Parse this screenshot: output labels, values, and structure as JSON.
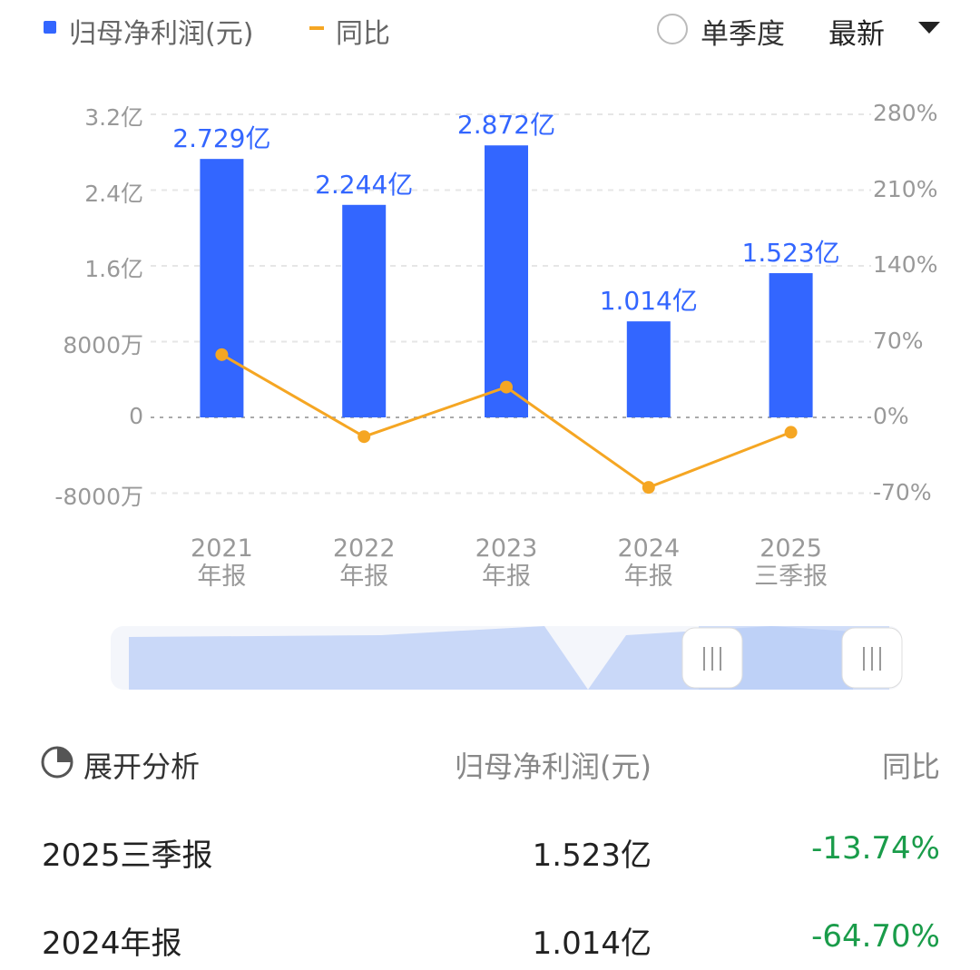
{
  "chart_data": {
    "type": "bar",
    "categories": [
      "2021\n年报",
      "2022\n年报",
      "2023\n年报",
      "2024\n年报",
      "2025\n三季报"
    ],
    "series": [
      {
        "name": "归母净利润(元)",
        "type": "bar",
        "color": "#3366ff",
        "axis": "y",
        "values": [
          272900000,
          224400000,
          287200000,
          101400000,
          152300000
        ],
        "value_labels": [
          "2.729亿",
          "2.244亿",
          "2.872亿",
          "1.014亿",
          "1.523亿"
        ]
      },
      {
        "name": "同比",
        "type": "line",
        "color": "#f5a623",
        "axis": "y2",
        "values": [
          58,
          -17.77,
          27.99,
          -64.7,
          -13.74
        ]
      }
    ],
    "ylim": [
      -80000000,
      320000000
    ],
    "yticks": [
      {
        "value": -80000000,
        "label": "-8000万"
      },
      0,
      {
        "value": 80000000,
        "label": "8000万"
      },
      {
        "value": 160000000,
        "label": "1.6亿"
      },
      {
        "value": 240000000,
        "label": "2.4亿"
      },
      {
        "value": 320000000,
        "label": "3.2亿"
      }
    ],
    "y2lim": [
      -70,
      280
    ],
    "y2ticks": [
      {
        "value": -70,
        "label": "-70%"
      },
      {
        "value": 0,
        "label": "0%"
      },
      {
        "value": 70,
        "label": "70%"
      },
      {
        "value": 140,
        "label": "140%"
      },
      {
        "value": 210,
        "label": "210%"
      },
      {
        "value": 280,
        "label": "280%"
      }
    ],
    "grid": true
  },
  "controls": {
    "quarterly": "单季度",
    "sort": "最新"
  },
  "table": {
    "header": [
      "展开分析",
      "归母净利润(元)",
      "同比"
    ],
    "rows": [
      [
        "2025三季报",
        "1.523亿",
        "-13.74%"
      ],
      [
        "2024年报",
        "1.014亿",
        "-64.70%"
      ]
    ]
  }
}
